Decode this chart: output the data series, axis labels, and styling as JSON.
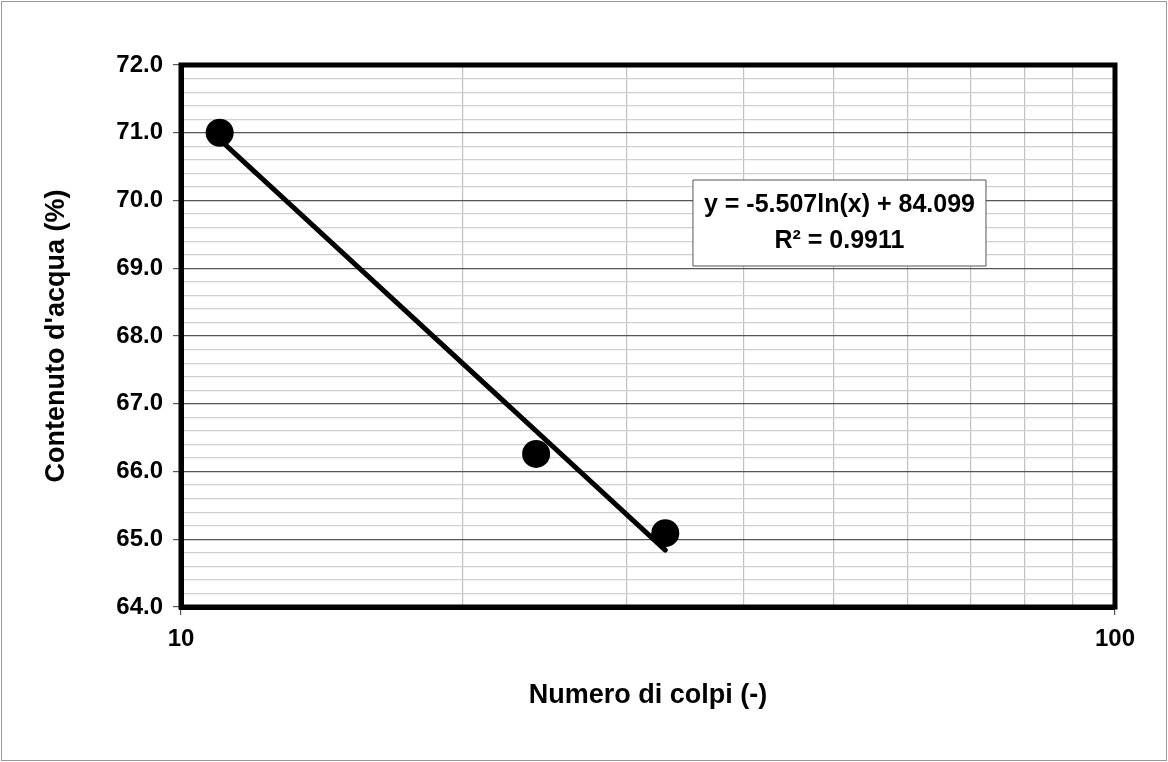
{
  "chart_data": {
    "type": "scatter",
    "xlabel": "Numero di colpi (-)",
    "ylabel": "Contenuto d'acqua (%)",
    "x": [
      11,
      24,
      33
    ],
    "series": [
      {
        "type": "scatter",
        "color": "#000000",
        "marker": "circle",
        "values": [
          71.0,
          66.26,
          65.09
        ]
      },
      {
        "type": "line",
        "color": "#000000",
        "marker": "none",
        "x": [
          11,
          33
        ],
        "values": [
          70.9,
          64.84
        ]
      }
    ],
    "log": "x",
    "xlim": [
      10,
      100
    ],
    "xticks": [
      10,
      {
        "value": 20,
        "label": null
      },
      {
        "value": 30,
        "label": null
      },
      {
        "value": 40,
        "label": null
      },
      {
        "value": 50,
        "label": null
      },
      {
        "value": 60,
        "label": null
      },
      {
        "value": 70,
        "label": null
      },
      {
        "value": 80,
        "label": null
      },
      {
        "value": 90,
        "label": null
      },
      100
    ],
    "ylim": [
      64,
      72
    ],
    "yticks": [
      {
        "value": 64,
        "label": "64.0"
      },
      {
        "value": 64.2,
        "label": null
      },
      {
        "value": 64.4,
        "label": null
      },
      {
        "value": 64.6,
        "label": null
      },
      {
        "value": 64.8,
        "label": null
      },
      {
        "value": 65,
        "label": "65.0"
      },
      {
        "value": 65.2,
        "label": null
      },
      {
        "value": 65.4,
        "label": null
      },
      {
        "value": 65.6,
        "label": null
      },
      {
        "value": 65.8,
        "label": null
      },
      {
        "value": 66,
        "label": "66.0"
      },
      {
        "value": 66.2,
        "label": null
      },
      {
        "value": 66.4,
        "label": null
      },
      {
        "value": 66.6,
        "label": null
      },
      {
        "value": 66.8,
        "label": null
      },
      {
        "value": 67,
        "label": "67.0"
      },
      {
        "value": 67.2,
        "label": null
      },
      {
        "value": 67.4,
        "label": null
      },
      {
        "value": 67.6,
        "label": null
      },
      {
        "value": 67.8,
        "label": null
      },
      {
        "value": 68,
        "label": "68.0"
      },
      {
        "value": 68.2,
        "label": null
      },
      {
        "value": 68.4,
        "label": null
      },
      {
        "value": 68.6,
        "label": null
      },
      {
        "value": 68.8,
        "label": null
      },
      {
        "value": 69,
        "label": "69.0"
      },
      {
        "value": 69.2,
        "label": null
      },
      {
        "value": 69.4,
        "label": null
      },
      {
        "value": 69.6,
        "label": null
      },
      {
        "value": 69.8,
        "label": null
      },
      {
        "value": 70,
        "label": "70.0"
      },
      {
        "value": 70.2,
        "label": null
      },
      {
        "value": 70.4,
        "label": null
      },
      {
        "value": 70.6,
        "label": null
      },
      {
        "value": 70.8,
        "label": null
      },
      {
        "value": 71,
        "label": "71.0"
      },
      {
        "value": 71.2,
        "label": null
      },
      {
        "value": 71.4,
        "label": null
      },
      {
        "value": 71.6,
        "label": null
      },
      {
        "value": 71.8,
        "label": null
      },
      {
        "value": 72,
        "label": "72.0"
      }
    ],
    "grid": true,
    "legend": false,
    "line_style": "solid",
    "annotations": [
      "y = -5.507ln(x) + 84.099",
      "R² = 0.9911"
    ]
  }
}
